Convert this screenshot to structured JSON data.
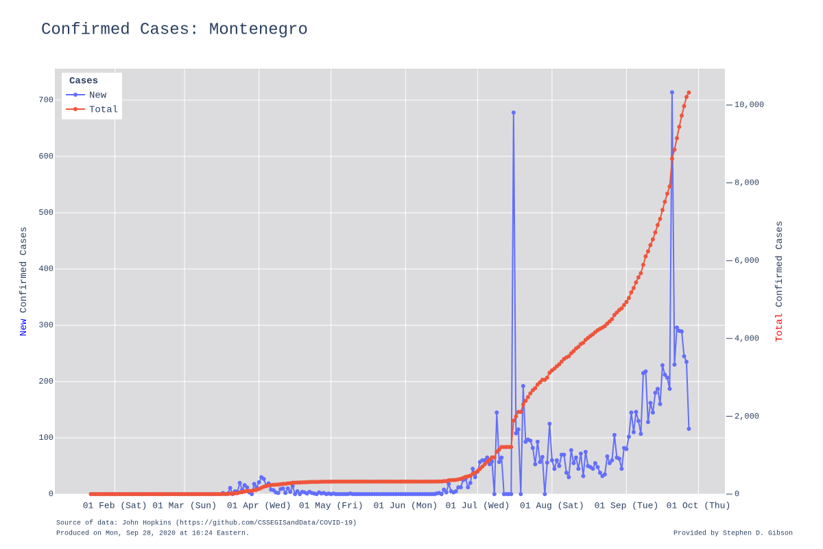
{
  "chart_data": {
    "type": "line",
    "title": "Confirmed Cases: Montenegro",
    "y_title": {
      "highlight": "New",
      "rest": "Confirmed Cases"
    },
    "y2_title": {
      "highlight": "Total",
      "rest": "Confirmed Cases"
    },
    "legend_title": "Cases",
    "legend": "top-left",
    "grid": true,
    "footer": {
      "source": "Source of data: John Hopkins (https://github.com/CSSEGISandData/COVID-19)",
      "produced": "Produced on Mon, Sep 28, 2020 at 16:24 Eastern.",
      "credit": "Provided by Stephen D. Gibson"
    },
    "xlim": [
      "01-07",
      "10-12"
    ],
    "xticks": [
      {
        "value": "02-01",
        "label": "01 Feb (Sat)"
      },
      {
        "value": "03-01",
        "label": "01 Mar (Sun)"
      },
      {
        "value": "04-01",
        "label": "01 Apr (Wed)"
      },
      {
        "value": "05-01",
        "label": "01 May (Fri)"
      },
      {
        "value": "06-01",
        "label": "01 Jun (Mon)"
      },
      {
        "value": "07-01",
        "label": "01 Jul (Wed)"
      },
      {
        "value": "08-01",
        "label": "01 Aug (Sat)"
      },
      {
        "value": "09-01",
        "label": "01 Sep (Tue)"
      },
      {
        "value": "10-01",
        "label": "01 Oct (Thu)"
      }
    ],
    "ylim": [
      0,
      756
    ],
    "yticks": [
      0,
      100,
      200,
      300,
      400,
      500,
      600,
      700
    ],
    "y2lim": [
      0,
      10935
    ],
    "y2ticks": [
      0,
      {
        "value": 2000,
        "label": "2,000"
      },
      {
        "value": 4000,
        "label": "4,000"
      },
      {
        "value": 6000,
        "label": "6,000"
      },
      {
        "value": 8000,
        "label": "8,000"
      },
      {
        "value": 10000,
        "label": "10,000"
      }
    ],
    "x": [
      "01-22",
      "01-23",
      "01-24",
      "01-25",
      "01-26",
      "01-27",
      "01-28",
      "01-29",
      "01-30",
      "01-31",
      "02-01",
      "02-02",
      "02-03",
      "02-04",
      "02-05",
      "02-06",
      "02-07",
      "02-08",
      "02-09",
      "02-10",
      "02-11",
      "02-12",
      "02-13",
      "02-14",
      "02-15",
      "02-16",
      "02-17",
      "02-18",
      "02-19",
      "02-20",
      "02-21",
      "02-22",
      "02-23",
      "02-24",
      "02-25",
      "02-26",
      "02-27",
      "02-28",
      "02-29",
      "03-01",
      "03-02",
      "03-03",
      "03-04",
      "03-05",
      "03-06",
      "03-07",
      "03-08",
      "03-09",
      "03-10",
      "03-11",
      "03-12",
      "03-13",
      "03-14",
      "03-15",
      "03-16",
      "03-17",
      "03-18",
      "03-19",
      "03-20",
      "03-21",
      "03-22",
      "03-23",
      "03-24",
      "03-25",
      "03-26",
      "03-27",
      "03-28",
      "03-29",
      "03-30",
      "03-31",
      "04-01",
      "04-02",
      "04-03",
      "04-04",
      "04-05",
      "04-06",
      "04-07",
      "04-08",
      "04-09",
      "04-10",
      "04-11",
      "04-12",
      "04-13",
      "04-14",
      "04-15",
      "04-16",
      "04-17",
      "04-18",
      "04-19",
      "04-20",
      "04-21",
      "04-22",
      "04-23",
      "04-24",
      "04-25",
      "04-26",
      "04-27",
      "04-28",
      "04-29",
      "04-30",
      "05-01",
      "05-02",
      "05-03",
      "05-04",
      "05-05",
      "05-06",
      "05-07",
      "05-08",
      "05-09",
      "05-10",
      "05-11",
      "05-12",
      "05-13",
      "05-14",
      "05-15",
      "05-16",
      "05-17",
      "05-18",
      "05-19",
      "05-20",
      "05-21",
      "05-22",
      "05-23",
      "05-24",
      "05-25",
      "05-26",
      "05-27",
      "05-28",
      "05-29",
      "05-30",
      "05-31",
      "06-01",
      "06-02",
      "06-03",
      "06-04",
      "06-05",
      "06-06",
      "06-07",
      "06-08",
      "06-09",
      "06-10",
      "06-11",
      "06-12",
      "06-13",
      "06-14",
      "06-15",
      "06-16",
      "06-17",
      "06-18",
      "06-19",
      "06-20",
      "06-21",
      "06-22",
      "06-23",
      "06-24",
      "06-25",
      "06-26",
      "06-27",
      "06-28",
      "06-29",
      "06-30",
      "07-01",
      "07-02",
      "07-03",
      "07-04",
      "07-05",
      "07-06",
      "07-07",
      "07-08",
      "07-09",
      "07-10",
      "07-11",
      "07-12",
      "07-13",
      "07-14",
      "07-15",
      "07-16",
      "07-17",
      "07-18",
      "07-19",
      "07-20",
      "07-21",
      "07-22",
      "07-23",
      "07-24",
      "07-25",
      "07-26",
      "07-27",
      "07-28",
      "07-29",
      "07-30",
      "07-31",
      "08-01",
      "08-02",
      "08-03",
      "08-04",
      "08-05",
      "08-06",
      "08-07",
      "08-08",
      "08-09",
      "08-10",
      "08-11",
      "08-12",
      "08-13",
      "08-14",
      "08-15",
      "08-16",
      "08-17",
      "08-18",
      "08-19",
      "08-20",
      "08-21",
      "08-22",
      "08-23",
      "08-24",
      "08-25",
      "08-26",
      "08-27",
      "08-28",
      "08-29",
      "08-30",
      "08-31",
      "09-01",
      "09-02",
      "09-03",
      "09-04",
      "09-05",
      "09-06",
      "09-07",
      "09-08",
      "09-09",
      "09-10",
      "09-11",
      "09-12",
      "09-13",
      "09-14",
      "09-15",
      "09-16",
      "09-17",
      "09-18",
      "09-19",
      "09-20",
      "09-21",
      "09-22",
      "09-23",
      "09-24",
      "09-25",
      "09-26",
      "09-27"
    ],
    "series": [
      {
        "name": "New",
        "color": "#636efa",
        "axis": "y",
        "values": [
          0,
          0,
          0,
          0,
          0,
          0,
          0,
          0,
          0,
          0,
          0,
          0,
          0,
          0,
          0,
          0,
          0,
          0,
          0,
          0,
          0,
          0,
          0,
          0,
          0,
          0,
          0,
          0,
          0,
          0,
          0,
          0,
          0,
          0,
          0,
          0,
          0,
          0,
          0,
          0,
          0,
          0,
          0,
          0,
          0,
          0,
          0,
          0,
          0,
          0,
          0,
          0,
          0,
          0,
          0,
          2,
          0,
          1,
          11,
          0,
          5,
          4,
          20,
          8,
          16,
          12,
          3,
          0,
          18,
          12,
          21,
          30,
          27,
          15,
          19,
          8,
          7,
          3,
          2,
          9,
          10,
          2,
          10,
          4,
          14,
          0,
          5,
          0,
          4,
          3,
          1,
          4,
          2,
          1,
          0,
          3,
          1,
          2,
          0,
          1,
          0,
          1,
          0,
          0,
          0,
          0,
          0,
          0,
          1,
          0,
          0,
          0,
          0,
          0,
          0,
          0,
          0,
          0,
          0,
          0,
          0,
          0,
          0,
          0,
          0,
          0,
          0,
          0,
          0,
          0,
          0,
          0,
          0,
          0,
          0,
          0,
          0,
          0,
          0,
          0,
          0,
          0,
          0,
          0,
          1,
          2,
          0,
          8,
          3,
          18,
          5,
          3,
          5,
          12,
          12,
          25,
          27,
          12,
          20,
          45,
          30,
          40,
          57,
          60,
          60,
          65,
          53,
          58,
          0,
          145,
          57,
          65,
          0,
          0,
          0,
          0,
          678,
          108,
          115,
          0,
          192,
          93,
          97,
          95,
          82,
          53,
          93,
          57,
          66,
          0,
          56,
          125,
          60,
          45,
          60,
          50,
          70,
          70,
          38,
          30,
          78,
          55,
          65,
          45,
          72,
          32,
          75,
          50,
          48,
          45,
          55,
          48,
          38,
          32,
          35,
          67,
          55,
          60,
          105,
          65,
          63,
          45,
          82,
          80,
          102,
          145,
          110,
          146,
          130,
          107,
          215,
          218,
          128,
          162,
          145,
          180,
          187,
          160,
          229,
          212,
          207,
          187,
          714,
          230,
          296,
          290,
          289,
          245,
          235,
          116
        ]
      },
      {
        "name": "Total",
        "color": "#ef553b",
        "axis": "y2",
        "values": [
          0,
          0,
          0,
          0,
          0,
          0,
          0,
          0,
          0,
          0,
          0,
          0,
          0,
          0,
          0,
          0,
          0,
          0,
          0,
          0,
          0,
          0,
          0,
          0,
          0,
          0,
          0,
          0,
          0,
          0,
          0,
          0,
          0,
          0,
          0,
          0,
          0,
          0,
          0,
          0,
          0,
          0,
          0,
          0,
          0,
          0,
          0,
          0,
          0,
          0,
          0,
          0,
          0,
          0,
          0,
          2,
          2,
          3,
          14,
          14,
          19,
          23,
          43,
          51,
          67,
          79,
          82,
          82,
          100,
          112,
          133,
          163,
          190,
          205,
          224,
          232,
          239,
          242,
          244,
          253,
          263,
          265,
          275,
          279,
          293,
          293,
          298,
          298,
          302,
          305,
          306,
          310,
          312,
          313,
          313,
          316,
          317,
          319,
          319,
          320,
          320,
          321,
          321,
          321,
          321,
          321,
          321,
          321,
          322,
          322,
          322,
          322,
          322,
          322,
          322,
          322,
          322,
          322,
          322,
          322,
          322,
          322,
          322,
          322,
          322,
          322,
          322,
          322,
          322,
          322,
          322,
          322,
          322,
          322,
          322,
          322,
          322,
          322,
          322,
          322,
          322,
          322,
          322,
          322,
          323,
          325,
          325,
          333,
          336,
          354,
          359,
          362,
          367,
          379,
          391,
          416,
          443,
          455,
          475,
          520,
          550,
          590,
          647,
          707,
          767,
          832,
          885,
          943,
          943,
          1088,
          1145,
          1210,
          1210,
          1210,
          1210,
          1210,
          1888,
          1996,
          2111,
          2111,
          2303,
          2396,
          2493,
          2588,
          2670,
          2723,
          2816,
          2873,
          2939,
          2939,
          2995,
          3120,
          3180,
          3225,
          3285,
          3335,
          3405,
          3475,
          3513,
          3543,
          3621,
          3676,
          3741,
          3786,
          3858,
          3890,
          3965,
          4015,
          4063,
          4108,
          4163,
          4211,
          4249,
          4281,
          4316,
          4383,
          4438,
          4498,
          4603,
          4668,
          4731,
          4776,
          4858,
          4938,
          5040,
          5185,
          5295,
          5441,
          5571,
          5678,
          5893,
          6111,
          6239,
          6401,
          6546,
          6726,
          6913,
          7073,
          7302,
          7514,
          7721,
          7908,
          8622,
          8852,
          9148,
          9438,
          9727,
          9972,
          10207,
          10323
        ]
      }
    ]
  }
}
